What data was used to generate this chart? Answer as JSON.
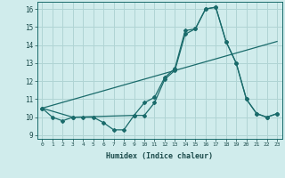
{
  "xlabel": "Humidex (Indice chaleur)",
  "ylabel": "",
  "background_color": "#d0ecec",
  "grid_color": "#b0d4d4",
  "line_color": "#1a6b6b",
  "xlim": [
    -0.5,
    23.5
  ],
  "ylim": [
    8.8,
    16.4
  ],
  "xticks": [
    0,
    1,
    2,
    3,
    4,
    5,
    6,
    7,
    8,
    9,
    10,
    11,
    12,
    13,
    14,
    15,
    16,
    17,
    18,
    19,
    20,
    21,
    22,
    23
  ],
  "yticks": [
    9,
    10,
    11,
    12,
    13,
    14,
    15,
    16
  ],
  "series1_x": [
    0,
    1,
    2,
    3,
    4,
    5,
    6,
    7,
    8,
    9,
    10,
    11,
    12,
    13,
    14,
    15,
    16,
    17,
    18,
    19,
    20,
    21,
    22,
    23
  ],
  "series1_y": [
    10.5,
    10.0,
    9.8,
    10.0,
    10.0,
    10.0,
    9.7,
    9.3,
    9.3,
    10.1,
    10.8,
    11.1,
    12.2,
    12.7,
    14.8,
    14.9,
    16.0,
    16.1,
    14.2,
    13.0,
    11.0,
    10.2,
    10.0,
    10.2
  ],
  "series2_x": [
    0,
    3,
    9,
    10,
    11,
    12,
    13,
    14,
    15,
    16,
    17,
    18,
    19,
    20,
    21,
    22,
    23
  ],
  "series2_y": [
    10.5,
    10.0,
    10.1,
    10.1,
    10.8,
    12.1,
    12.6,
    14.6,
    14.9,
    16.0,
    16.1,
    14.2,
    13.0,
    11.0,
    10.2,
    10.0,
    10.2
  ],
  "series3_x": [
    0,
    23
  ],
  "series3_y": [
    10.5,
    14.2
  ],
  "xtick_fontsize": 4.5,
  "ytick_fontsize": 5.5,
  "xlabel_fontsize": 6.0
}
